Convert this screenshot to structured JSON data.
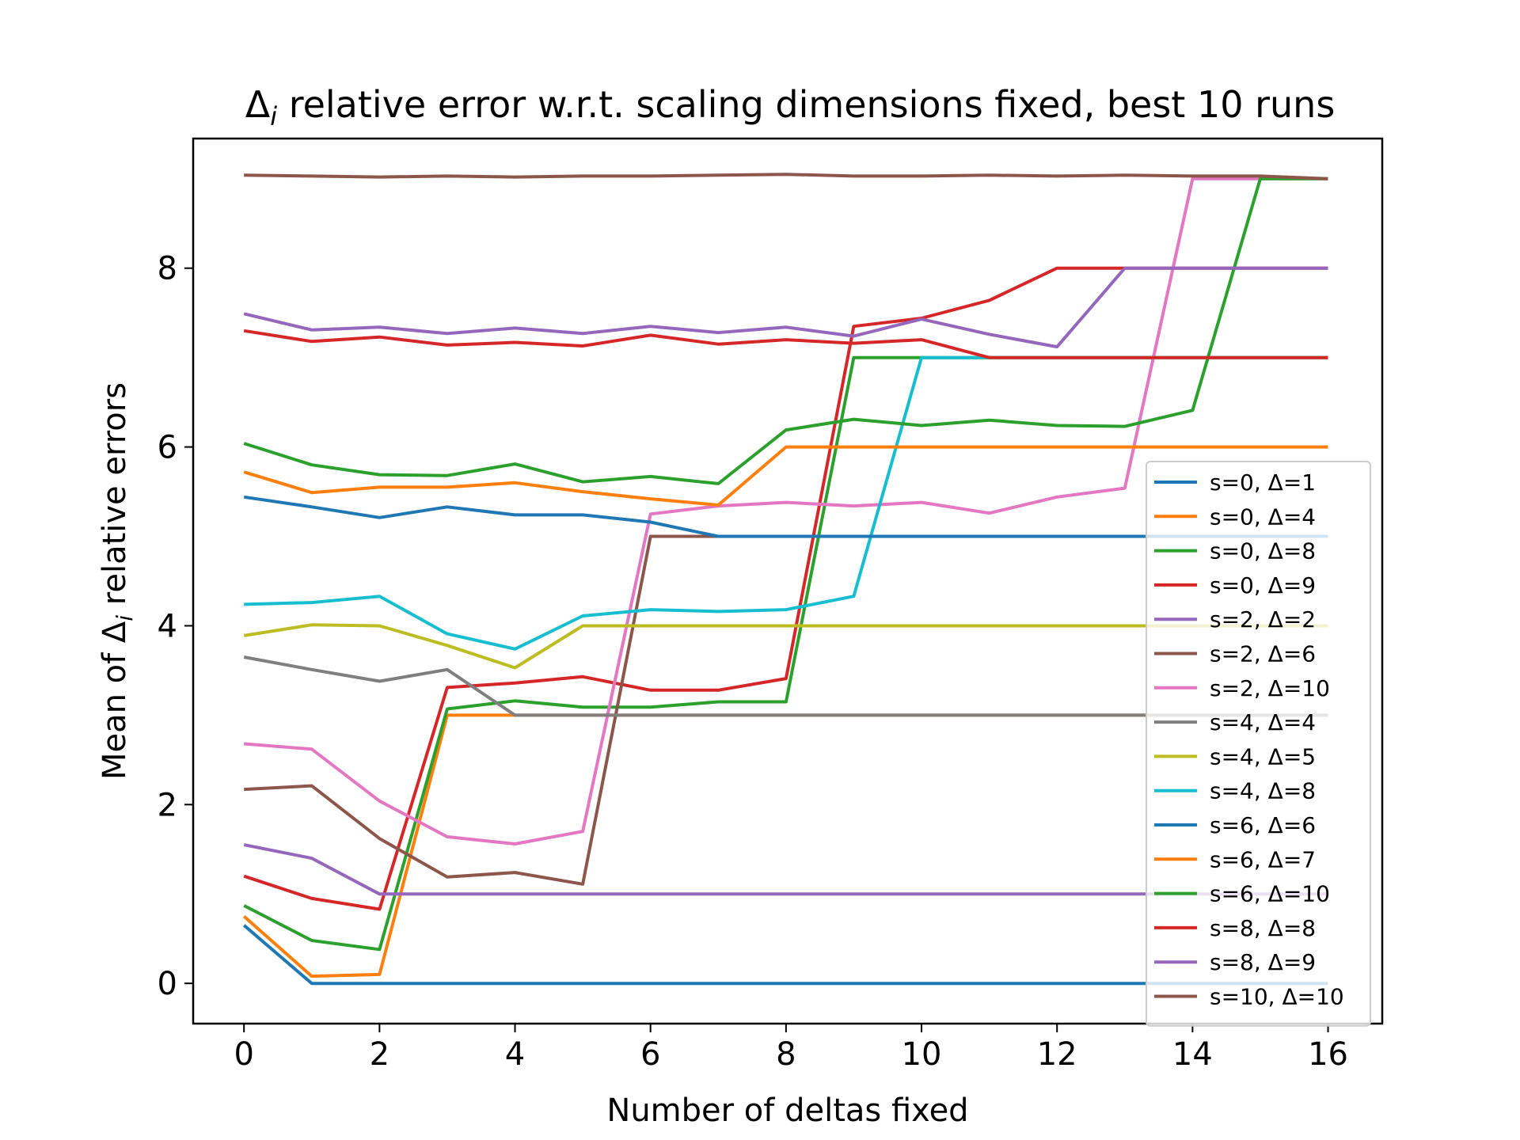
{
  "chart_data": {
    "type": "line",
    "title_prefix": "Δ",
    "title_sub": "i",
    "title_rest": " relative error w.r.t. scaling dimensions fixed, best 10 runs",
    "xlabel": "Number of deltas fixed",
    "ylabel_prefix": "Mean of Δ",
    "ylabel_sub": "i",
    "ylabel_rest": " relative errors",
    "xlim": [
      -0.75,
      16.8
    ],
    "ylim": [
      -0.45,
      9.45
    ],
    "xticks": [
      0,
      2,
      4,
      6,
      8,
      10,
      12,
      14,
      16
    ],
    "yticks": [
      0,
      2,
      4,
      6,
      8
    ],
    "legend_position": "lower right",
    "x": [
      0,
      1,
      2,
      3,
      4,
      5,
      6,
      7,
      8,
      9,
      10,
      11,
      12,
      13,
      14,
      15,
      16
    ],
    "series": [
      {
        "name": "s=0, Δ=1",
        "color": "#1f77b4",
        "values": [
          0.65,
          0,
          0,
          0,
          0,
          0,
          0,
          0,
          0,
          0,
          0,
          0,
          0,
          0,
          0,
          0,
          0
        ]
      },
      {
        "name": "s=0, Δ=4",
        "color": "#ff7f0e",
        "values": [
          0.75,
          0.08,
          0.1,
          3.0,
          3.0,
          3.0,
          3.0,
          3.0,
          3.0,
          3.0,
          3.0,
          3.0,
          3.0,
          3.0,
          3.0,
          3.0,
          3.0
        ]
      },
      {
        "name": "s=0, Δ=8",
        "color": "#2ca02c",
        "values": [
          0.87,
          0.48,
          0.38,
          3.07,
          3.16,
          3.09,
          3.09,
          3.15,
          3.15,
          7.0,
          7.0,
          7.0,
          7.0,
          7.0,
          7.0,
          7.0,
          7.0
        ]
      },
      {
        "name": "s=0, Δ=9",
        "color": "#d62728",
        "values": [
          1.2,
          0.95,
          0.83,
          3.31,
          3.36,
          3.43,
          3.28,
          3.28,
          3.41,
          7.35,
          7.44,
          7.64,
          8.0,
          8.0,
          8.0,
          8.0,
          8.0
        ]
      },
      {
        "name": "s=2, Δ=2",
        "color": "#9467bd",
        "values": [
          1.55,
          1.4,
          1.0,
          1.0,
          1.0,
          1.0,
          1.0,
          1.0,
          1.0,
          1.0,
          1.0,
          1.0,
          1.0,
          1.0,
          1.0,
          1.0,
          1.0
        ]
      },
      {
        "name": "s=2, Δ=6",
        "color": "#8c564b",
        "values": [
          2.17,
          2.21,
          1.62,
          1.19,
          1.24,
          1.11,
          5.0,
          5.0,
          5.0,
          5.0,
          5.0,
          5.0,
          5.0,
          5.0,
          5.0,
          5.0,
          5.0
        ]
      },
      {
        "name": "s=2, Δ=10",
        "color": "#e377c2",
        "values": [
          2.68,
          2.62,
          2.04,
          1.64,
          1.56,
          1.7,
          5.25,
          5.34,
          5.38,
          5.34,
          5.38,
          5.26,
          5.44,
          5.54,
          9.0,
          9.0,
          9.0
        ]
      },
      {
        "name": "s=4, Δ=4",
        "color": "#7f7f7f",
        "values": [
          3.65,
          3.51,
          3.38,
          3.51,
          3.0,
          3.0,
          3.0,
          3.0,
          3.0,
          3.0,
          3.0,
          3.0,
          3.0,
          3.0,
          3.0,
          3.0,
          3.0
        ]
      },
      {
        "name": "s=4, Δ=5",
        "color": "#bcbd22",
        "values": [
          3.89,
          4.01,
          4.0,
          3.78,
          3.53,
          4.0,
          4.0,
          4.0,
          4.0,
          4.0,
          4.0,
          4.0,
          4.0,
          4.0,
          4.0,
          4.0,
          4.0
        ]
      },
      {
        "name": "s=4, Δ=8",
        "color": "#17becf",
        "values": [
          4.24,
          4.26,
          4.33,
          3.91,
          3.74,
          4.11,
          4.18,
          4.16,
          4.18,
          4.33,
          7.0,
          7.0,
          7.0,
          7.0,
          7.0,
          7.0,
          7.0
        ]
      },
      {
        "name": "s=6, Δ=6",
        "color": "#1f77b4",
        "values": [
          5.44,
          5.33,
          5.21,
          5.33,
          5.24,
          5.24,
          5.16,
          5.0,
          5.0,
          5.0,
          5.0,
          5.0,
          5.0,
          5.0,
          5.0,
          5.0,
          5.0
        ]
      },
      {
        "name": "s=6, Δ=7",
        "color": "#ff7f0e",
        "values": [
          5.72,
          5.49,
          5.55,
          5.55,
          5.6,
          5.5,
          5.42,
          5.35,
          6.0,
          6.0,
          6.0,
          6.0,
          6.0,
          6.0,
          6.0,
          6.0,
          6.0
        ]
      },
      {
        "name": "s=6, Δ=10",
        "color": "#2ca02c",
        "values": [
          6.04,
          5.8,
          5.69,
          5.68,
          5.81,
          5.61,
          5.67,
          5.59,
          6.19,
          6.31,
          6.24,
          6.3,
          6.24,
          6.23,
          6.41,
          9.0,
          9.0
        ]
      },
      {
        "name": "s=8, Δ=8",
        "color": "#d62728",
        "values": [
          7.3,
          7.18,
          7.23,
          7.14,
          7.17,
          7.13,
          7.25,
          7.15,
          7.2,
          7.16,
          7.2,
          7.0,
          7.0,
          7.0,
          7.0,
          7.0,
          7.0
        ]
      },
      {
        "name": "s=8, Δ=9",
        "color": "#9467bd",
        "values": [
          7.49,
          7.31,
          7.34,
          7.27,
          7.33,
          7.27,
          7.35,
          7.28,
          7.34,
          7.24,
          7.43,
          7.26,
          7.12,
          8.0,
          8.0,
          8.0,
          8.0
        ]
      },
      {
        "name": "s=10, Δ=10",
        "color": "#8c564b",
        "values": [
          9.04,
          9.03,
          9.02,
          9.03,
          9.02,
          9.03,
          9.03,
          9.04,
          9.05,
          9.03,
          9.03,
          9.04,
          9.03,
          9.04,
          9.03,
          9.03,
          9.0
        ]
      }
    ]
  }
}
